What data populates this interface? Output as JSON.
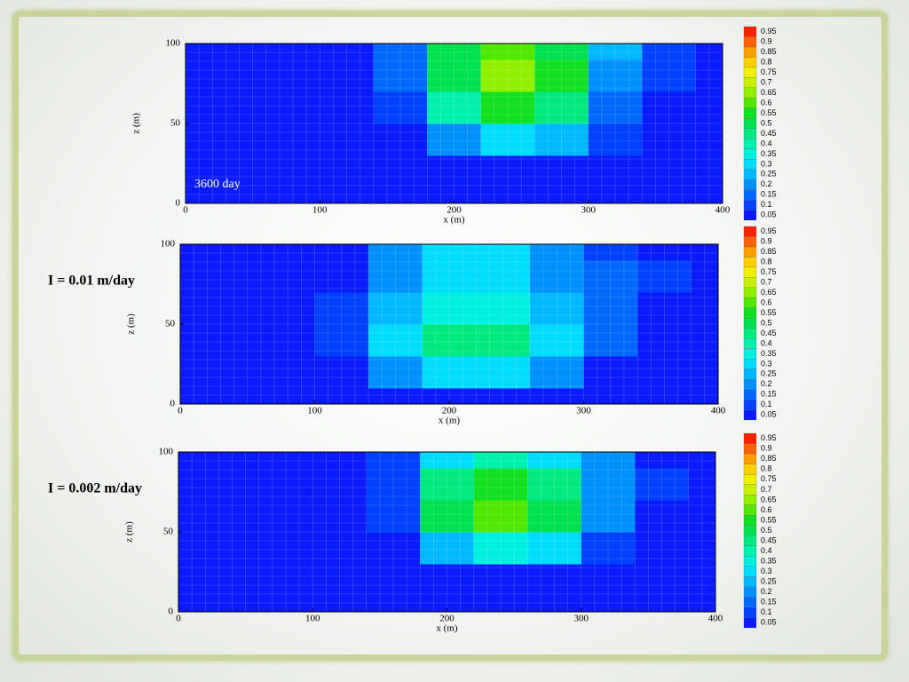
{
  "chart_data": [
    {
      "type": "contour",
      "annotation": "3600 day",
      "x_label": "x (m)",
      "y_label": "z (m)",
      "xlim": [
        0,
        400
      ],
      "ylim": [
        0,
        100
      ],
      "xticks": [
        0,
        100,
        200,
        300,
        400
      ],
      "yticks": [
        0,
        50,
        100
      ],
      "x": [
        0,
        40,
        80,
        120,
        160,
        200,
        240,
        280,
        320,
        360,
        400
      ],
      "z": [
        0,
        20,
        40,
        60,
        80,
        100
      ],
      "values": [
        [
          0.02,
          0.02,
          0.02,
          0.02,
          0.02,
          0.02,
          0.02,
          0.02,
          0.02,
          0.02,
          0.02
        ],
        [
          0.02,
          0.02,
          0.02,
          0.02,
          0.02,
          0.03,
          0.04,
          0.04,
          0.03,
          0.02,
          0.02
        ],
        [
          0.02,
          0.02,
          0.02,
          0.02,
          0.05,
          0.2,
          0.3,
          0.25,
          0.1,
          0.02,
          0.02
        ],
        [
          0.02,
          0.02,
          0.02,
          0.02,
          0.1,
          0.4,
          0.55,
          0.45,
          0.15,
          0.03,
          0.02
        ],
        [
          0.02,
          0.02,
          0.02,
          0.02,
          0.15,
          0.5,
          0.65,
          0.55,
          0.2,
          0.1,
          0.03
        ],
        [
          0.02,
          0.02,
          0.02,
          0.02,
          0.15,
          0.5,
          0.6,
          0.5,
          0.25,
          0.12,
          0.05
        ]
      ],
      "levels": [
        0.05,
        0.1,
        0.15,
        0.2,
        0.25,
        0.3,
        0.35,
        0.4,
        0.45,
        0.5,
        0.55,
        0.6,
        0.65,
        0.7,
        0.75,
        0.8,
        0.85,
        0.9,
        0.95
      ],
      "colors": [
        "#0a1aff",
        "#0040ff",
        "#0068ff",
        "#0090ff",
        "#00b8ff",
        "#00dcff",
        "#00f0e0",
        "#00f0b0",
        "#00e880",
        "#00e050",
        "#10e020",
        "#50e800",
        "#90f000",
        "#c8f000",
        "#f0f000",
        "#ffd000",
        "#ffa000",
        "#ff6000",
        "#ff2000"
      ]
    },
    {
      "type": "contour",
      "title": "I = 0.01 m/day",
      "x_label": "x (m)",
      "y_label": "z (m)",
      "xlim": [
        0,
        400
      ],
      "ylim": [
        0,
        100
      ],
      "xticks": [
        0,
        100,
        200,
        300,
        400
      ],
      "yticks": [
        0,
        50,
        100
      ],
      "x": [
        0,
        40,
        80,
        120,
        160,
        200,
        240,
        280,
        320,
        360,
        400
      ],
      "z": [
        0,
        20,
        40,
        60,
        80,
        100
      ],
      "values": [
        [
          0.02,
          0.02,
          0.02,
          0.02,
          0.02,
          0.02,
          0.02,
          0.02,
          0.02,
          0.02,
          0.02
        ],
        [
          0.02,
          0.02,
          0.02,
          0.05,
          0.2,
          0.3,
          0.3,
          0.2,
          0.05,
          0.02,
          0.02
        ],
        [
          0.02,
          0.02,
          0.02,
          0.1,
          0.3,
          0.45,
          0.45,
          0.3,
          0.15,
          0.03,
          0.02
        ],
        [
          0.02,
          0.02,
          0.02,
          0.1,
          0.25,
          0.35,
          0.35,
          0.25,
          0.15,
          0.05,
          0.02
        ],
        [
          0.02,
          0.02,
          0.02,
          0.08,
          0.2,
          0.3,
          0.3,
          0.2,
          0.15,
          0.1,
          0.05
        ],
        [
          0.02,
          0.02,
          0.02,
          0.08,
          0.2,
          0.3,
          0.3,
          0.2,
          0.12,
          0.08,
          0.03
        ]
      ],
      "levels": [
        0.05,
        0.1,
        0.15,
        0.2,
        0.25,
        0.3,
        0.35,
        0.4,
        0.45,
        0.5,
        0.55,
        0.6,
        0.65,
        0.7,
        0.75,
        0.8,
        0.85,
        0.9,
        0.95
      ],
      "colors": [
        "#0a1aff",
        "#0040ff",
        "#0068ff",
        "#0090ff",
        "#00b8ff",
        "#00dcff",
        "#00f0e0",
        "#00f0b0",
        "#00e880",
        "#00e050",
        "#10e020",
        "#50e800",
        "#90f000",
        "#c8f000",
        "#f0f000",
        "#ffd000",
        "#ffa000",
        "#ff6000",
        "#ff2000"
      ]
    },
    {
      "type": "contour",
      "title": "I = 0.002 m/day",
      "x_label": "x (m)",
      "y_label": "z (m)",
      "xlim": [
        0,
        400
      ],
      "ylim": [
        0,
        100
      ],
      "xticks": [
        0,
        100,
        200,
        300,
        400
      ],
      "yticks": [
        0,
        50,
        100
      ],
      "x": [
        0,
        40,
        80,
        120,
        160,
        200,
        240,
        280,
        320,
        360,
        400
      ],
      "z": [
        0,
        20,
        40,
        60,
        80,
        100
      ],
      "values": [
        [
          0.02,
          0.02,
          0.02,
          0.02,
          0.02,
          0.02,
          0.02,
          0.02,
          0.02,
          0.02,
          0.02
        ],
        [
          0.02,
          0.02,
          0.02,
          0.02,
          0.02,
          0.03,
          0.05,
          0.05,
          0.03,
          0.02,
          0.02
        ],
        [
          0.02,
          0.02,
          0.02,
          0.02,
          0.05,
          0.25,
          0.35,
          0.3,
          0.1,
          0.02,
          0.02
        ],
        [
          0.02,
          0.02,
          0.02,
          0.02,
          0.1,
          0.5,
          0.62,
          0.5,
          0.2,
          0.03,
          0.02
        ],
        [
          0.02,
          0.02,
          0.02,
          0.02,
          0.12,
          0.45,
          0.55,
          0.45,
          0.2,
          0.1,
          0.02
        ],
        [
          0.02,
          0.02,
          0.02,
          0.02,
          0.1,
          0.3,
          0.4,
          0.3,
          0.2,
          0.08,
          0.02
        ]
      ],
      "levels": [
        0.05,
        0.1,
        0.15,
        0.2,
        0.25,
        0.3,
        0.35,
        0.4,
        0.45,
        0.5,
        0.55,
        0.6,
        0.65,
        0.7,
        0.75,
        0.8,
        0.85,
        0.9,
        0.95
      ],
      "colors": [
        "#0a1aff",
        "#0040ff",
        "#0068ff",
        "#0090ff",
        "#00b8ff",
        "#00dcff",
        "#00f0e0",
        "#00f0b0",
        "#00e880",
        "#00e050",
        "#10e020",
        "#50e800",
        "#90f000",
        "#c8f000",
        "#f0f000",
        "#ffd000",
        "#ffa000",
        "#ff6000",
        "#ff2000"
      ]
    }
  ]
}
